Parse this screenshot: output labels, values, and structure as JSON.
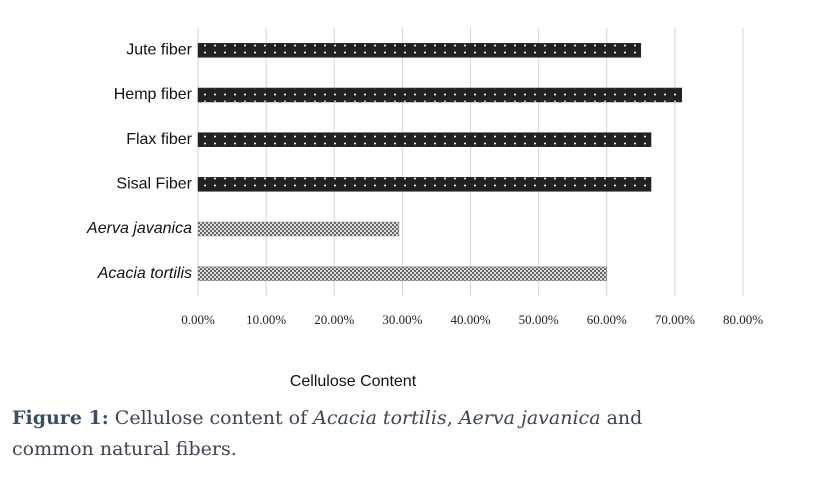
{
  "chart_data": {
    "type": "hbar",
    "categories": [
      "Jute fiber",
      "Hemp fiber",
      "Flax fiber",
      "Sisal Fiber",
      "Aerva javanica",
      "Acacia tortilis"
    ],
    "category_styles": [
      "normal",
      "normal",
      "normal",
      "normal",
      "italic",
      "italic"
    ],
    "values": [
      65,
      71,
      66.5,
      66.5,
      29.5,
      60
    ],
    "colors": [
      "#222222",
      "#222222",
      "#222222",
      "#222222",
      "#8a8a8a",
      "#8a8a8a"
    ],
    "xlim": [
      0,
      80
    ],
    "xticks": [
      {
        "value": 0,
        "label": "0.00%"
      },
      {
        "value": 10,
        "label": "10.00%"
      },
      {
        "value": 20,
        "label": "20.00%"
      },
      {
        "value": 30,
        "label": "30.00%"
      },
      {
        "value": 40,
        "label": "40.00%"
      },
      {
        "value": 50,
        "label": "50.00%"
      },
      {
        "value": 60,
        "label": "60.00%"
      },
      {
        "value": 70,
        "label": "70.00%"
      },
      {
        "value": 80,
        "label": "80.00%"
      }
    ],
    "xlabel": "Cellulose Content",
    "grid": true
  },
  "caption": {
    "line1": [
      {
        "text": "Figure 1:",
        "style": "bold"
      },
      {
        "text": " Cellulose content of ",
        "style": "normal"
      },
      {
        "text": "Acacia tortilis",
        "style": "italic"
      },
      {
        "text": ", ",
        "style": "normal"
      },
      {
        "text": "Aerva javanica",
        "style": "italic"
      },
      {
        "text": " and",
        "style": "normal"
      }
    ],
    "line2": "common natural fibers."
  }
}
